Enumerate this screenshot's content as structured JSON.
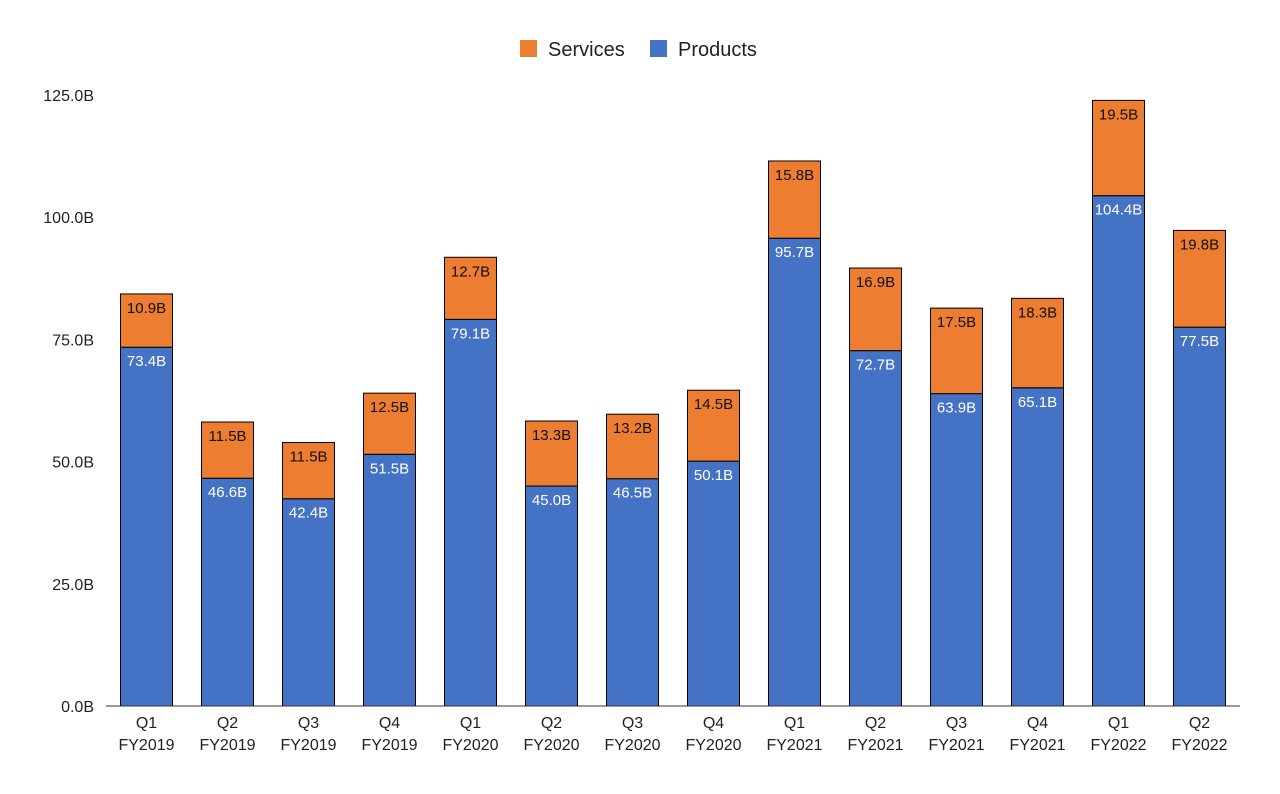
{
  "chart_data": {
    "type": "bar",
    "stacked": true,
    "title": "",
    "xlabel": "",
    "ylabel": "",
    "ylim": [
      0,
      125
    ],
    "yticks": [
      0,
      25,
      50,
      75,
      100,
      125
    ],
    "ytick_labels": [
      "0.0B",
      "25.0B",
      "50.0B",
      "75.0B",
      "100.0B",
      "125.0B"
    ],
    "grid": false,
    "legend_position": "top-center",
    "categories": [
      [
        "Q1",
        "FY2019"
      ],
      [
        "Q2",
        "FY2019"
      ],
      [
        "Q3",
        "FY2019"
      ],
      [
        "Q4",
        "FY2019"
      ],
      [
        "Q1",
        "FY2020"
      ],
      [
        "Q2",
        "FY2020"
      ],
      [
        "Q3",
        "FY2020"
      ],
      [
        "Q4",
        "FY2020"
      ],
      [
        "Q1",
        "FY2021"
      ],
      [
        "Q2",
        "FY2021"
      ],
      [
        "Q3",
        "FY2021"
      ],
      [
        "Q4",
        "FY2021"
      ],
      [
        "Q1",
        "FY2022"
      ],
      [
        "Q2",
        "FY2022"
      ]
    ],
    "series": [
      {
        "name": "Products",
        "color": "#4472c4",
        "values": [
          73.4,
          46.6,
          42.4,
          51.5,
          79.1,
          45.0,
          46.5,
          50.1,
          95.7,
          72.7,
          63.9,
          65.1,
          104.4,
          77.5
        ],
        "labels": [
          "73.4B",
          "46.6B",
          "42.4B",
          "51.5B",
          "79.1B",
          "45.0B",
          "46.5B",
          "50.1B",
          "95.7B",
          "72.7B",
          "63.9B",
          "65.1B",
          "104.4B",
          "77.5B"
        ]
      },
      {
        "name": "Services",
        "color": "#ed7d31",
        "values": [
          10.9,
          11.5,
          11.5,
          12.5,
          12.7,
          13.3,
          13.2,
          14.5,
          15.8,
          16.9,
          17.5,
          18.3,
          19.5,
          19.8
        ],
        "labels": [
          "10.9B",
          "11.5B",
          "11.5B",
          "12.5B",
          "12.7B",
          "13.3B",
          "13.2B",
          "14.5B",
          "15.8B",
          "16.9B",
          "17.5B",
          "18.3B",
          "19.5B",
          "19.8B"
        ]
      }
    ],
    "legend": [
      {
        "name": "Services",
        "color": "#ed7d31"
      },
      {
        "name": "Products",
        "color": "#4472c4"
      }
    ]
  }
}
